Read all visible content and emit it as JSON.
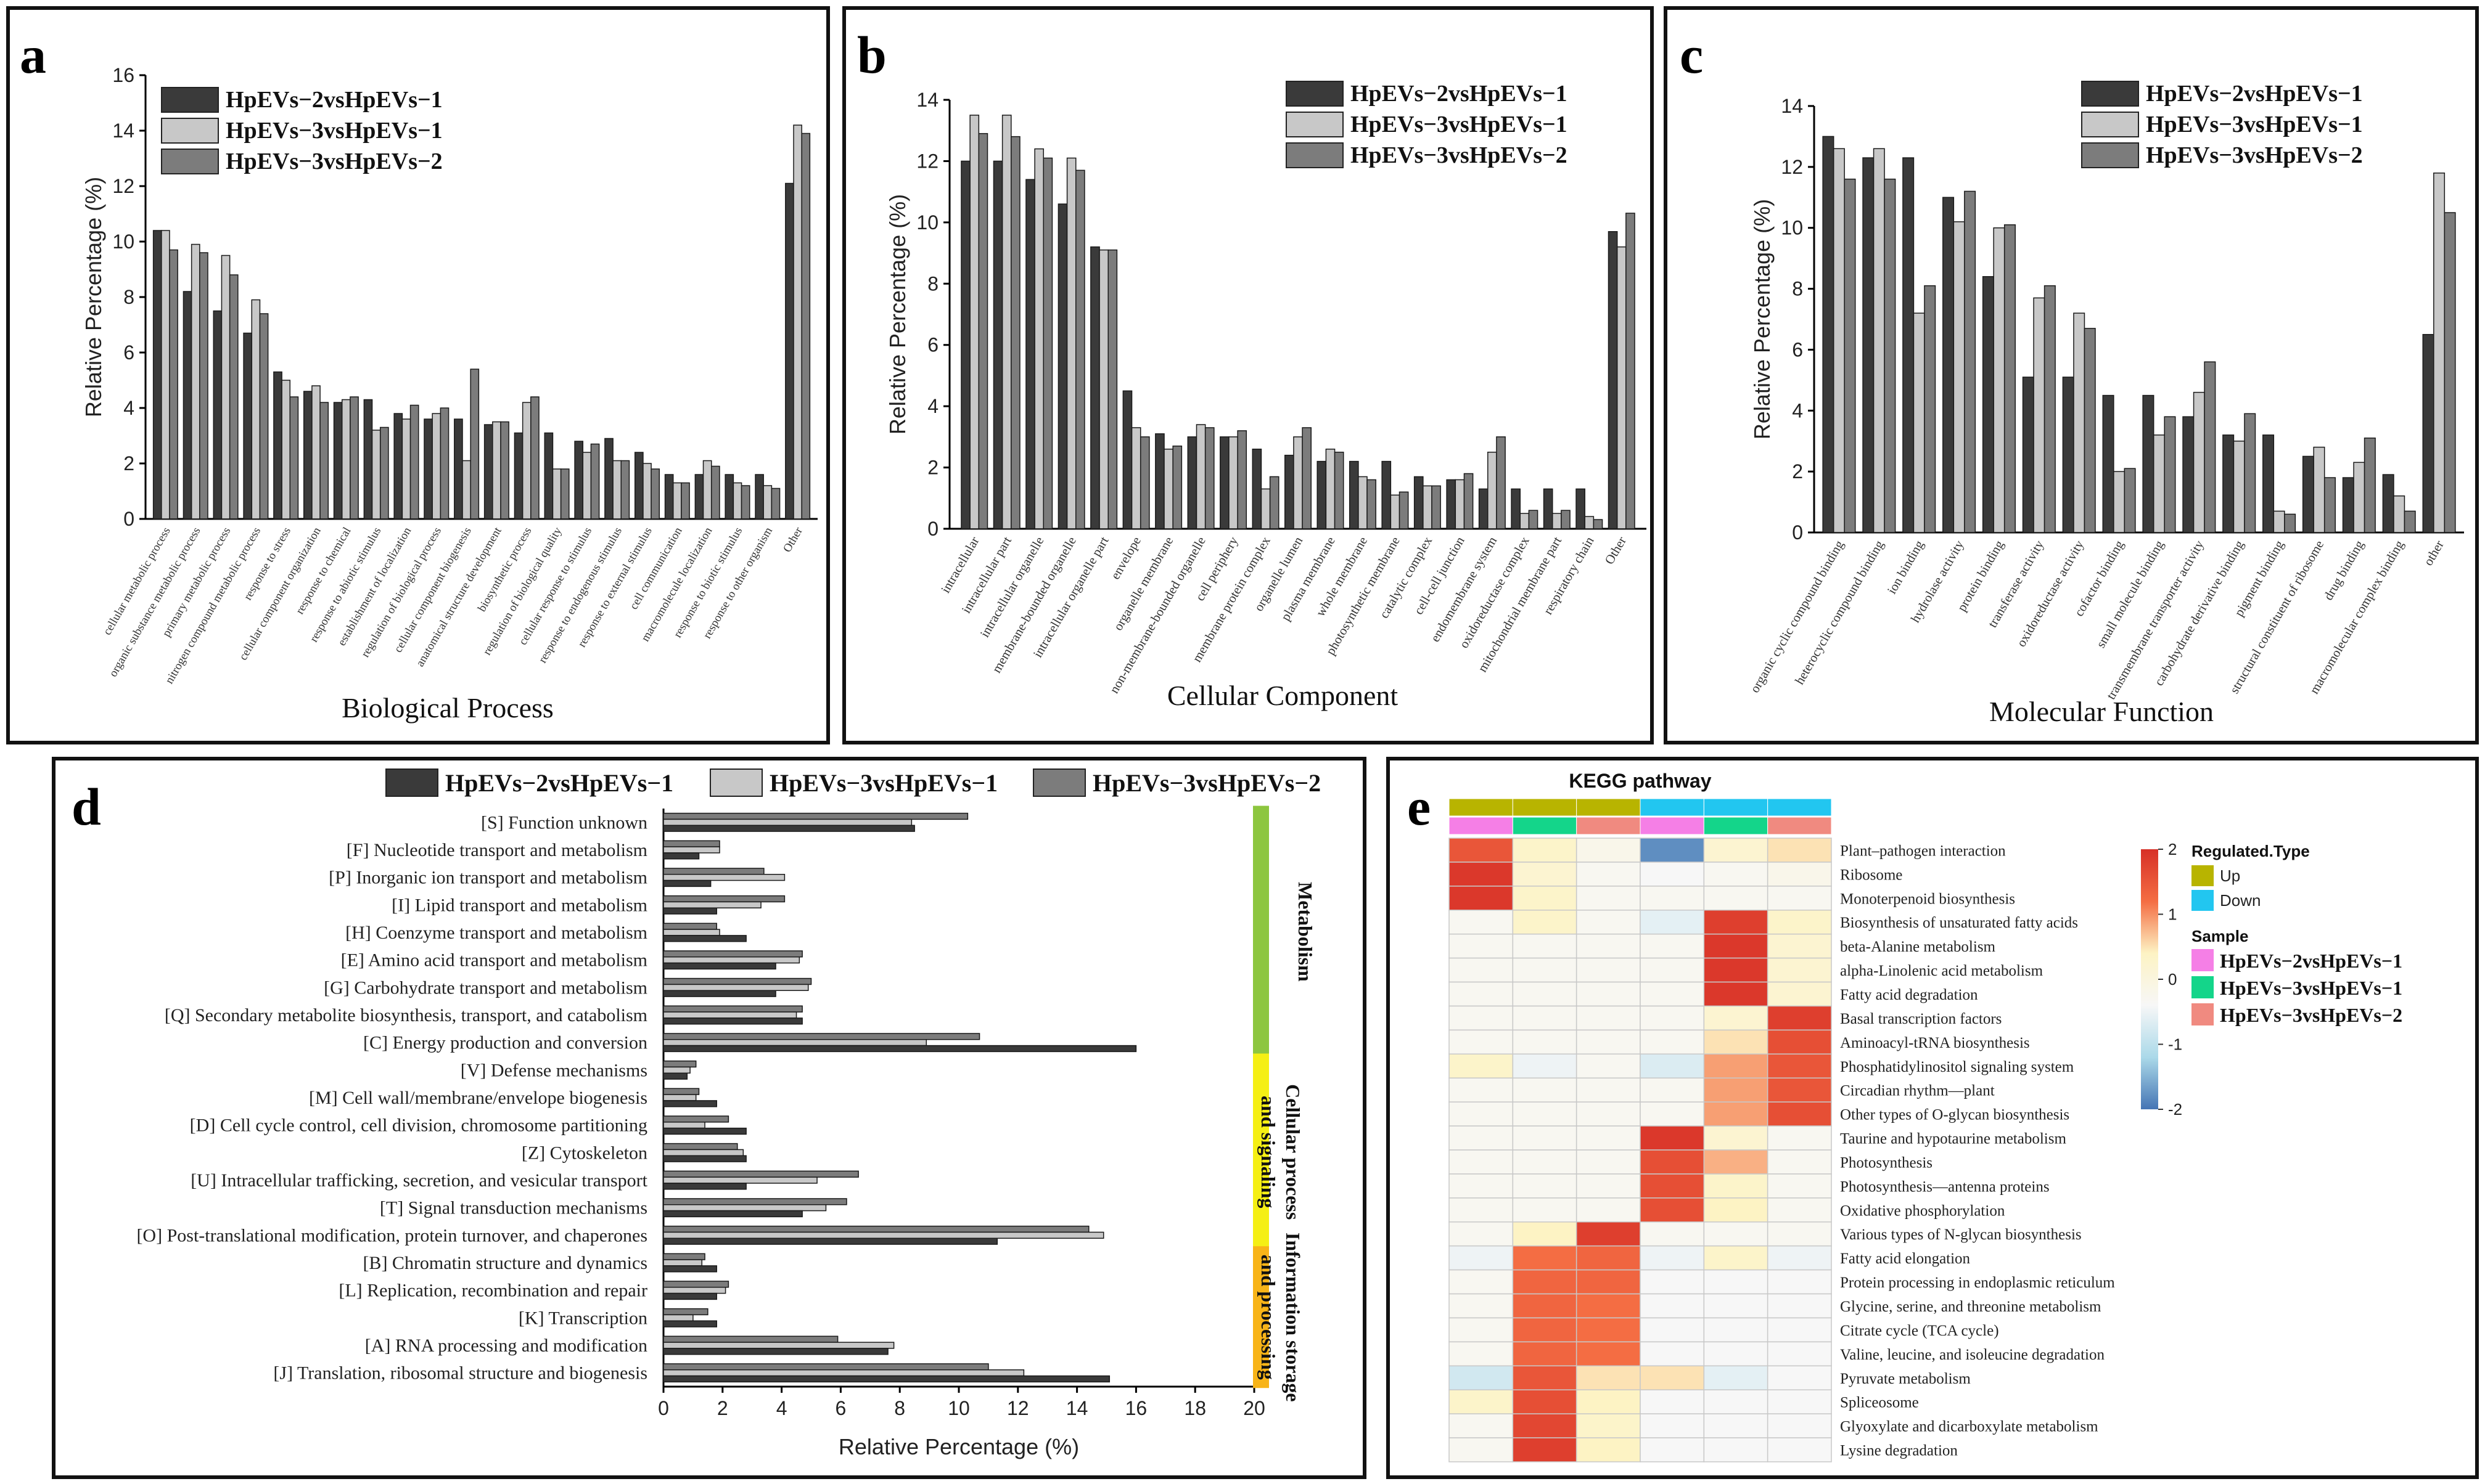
{
  "chart_data": [
    {
      "panel": "a",
      "type": "bar",
      "title": "",
      "xlabel": "Biological Process",
      "ylabel": "Relative Percentage (%)",
      "ylim": [
        0,
        16
      ],
      "yticks": [
        0,
        2,
        4,
        6,
        8,
        10,
        12,
        14,
        16
      ],
      "legend_position": "top-left",
      "categories": [
        "cellular metabolic process",
        "organic substance metabolic process",
        "primary metabolic process",
        "nitrogen compound metabolic process",
        "response to stress",
        "cellular component organization",
        "response to chemical",
        "response to abiotic stimulus",
        "establishment of localization",
        "regulation of biological process",
        "cellular component biogenesis",
        "anatomical structure development",
        "biosynthetic process",
        "regulation of biological quality",
        "cellular response to stimulus",
        "response to endogenous stimulus",
        "response to external stimulus",
        "cell communication",
        "macromolecule localization",
        "response to biotic stimulus",
        "response to other organism",
        "Other"
      ],
      "series": [
        {
          "name": "HpEVs−2vsHpEVs−1",
          "color": "#3a3a3a",
          "values": [
            10.4,
            8.2,
            7.5,
            6.7,
            5.3,
            4.6,
            4.2,
            4.3,
            3.8,
            3.6,
            3.6,
            3.4,
            3.1,
            3.1,
            2.8,
            2.9,
            2.4,
            1.6,
            1.6,
            1.6,
            1.6,
            12.1
          ]
        },
        {
          "name": "HpEVs−3vsHpEVs−1",
          "color": "#c8c8c8",
          "values": [
            10.4,
            9.9,
            9.5,
            7.9,
            5.0,
            4.8,
            4.3,
            3.2,
            3.6,
            3.8,
            2.1,
            3.5,
            4.2,
            1.8,
            2.4,
            2.1,
            2.0,
            1.3,
            2.1,
            1.3,
            1.2,
            14.2
          ]
        },
        {
          "name": "HpEVs−3vsHpEVs−2",
          "color": "#7c7c7c",
          "values": [
            9.7,
            9.6,
            8.8,
            7.4,
            4.4,
            4.2,
            4.4,
            3.3,
            4.1,
            4.0,
            5.4,
            3.5,
            4.4,
            1.8,
            2.7,
            2.1,
            1.8,
            1.3,
            1.9,
            1.2,
            1.1,
            13.9
          ]
        }
      ]
    },
    {
      "panel": "b",
      "type": "bar",
      "title": "",
      "xlabel": "Cellular Component",
      "ylabel": "Relative Percentage (%)",
      "ylim": [
        0,
        14
      ],
      "yticks": [
        0,
        2,
        4,
        6,
        8,
        10,
        12,
        14
      ],
      "legend_position": "top-right",
      "categories": [
        "intracellular",
        "intracellular part",
        "intracellular organelle",
        "membrane-bounded organelle",
        "intracellular organelle part",
        "envelope",
        "organelle membrane",
        "non-membrane-bounded organelle",
        "cell periphery",
        "membrane protein complex",
        "organelle lumen",
        "plasma membrane",
        "whole membrane",
        "photosynthetic membrane",
        "catalytic complex",
        "cell-cell junction",
        "endomembrane system",
        "oxidoreductase complex",
        "mitochondrial membrane part",
        "respiratory chain",
        "Other"
      ],
      "series": [
        {
          "name": "HpEVs−2vsHpEVs−1",
          "color": "#3a3a3a",
          "values": [
            12.0,
            12.0,
            11.4,
            10.6,
            9.2,
            4.5,
            3.1,
            3.0,
            3.0,
            2.6,
            2.4,
            2.2,
            2.2,
            2.2,
            1.7,
            1.6,
            1.3,
            1.3,
            1.3,
            1.3,
            9.7
          ]
        },
        {
          "name": "HpEVs−3vsHpEVs−1",
          "color": "#c8c8c8",
          "values": [
            13.5,
            13.5,
            12.4,
            12.1,
            9.1,
            3.3,
            2.6,
            3.4,
            3.0,
            1.3,
            3.0,
            2.6,
            1.7,
            1.1,
            1.4,
            1.6,
            2.5,
            0.5,
            0.5,
            0.4,
            9.2
          ]
        },
        {
          "name": "HpEVs−3vsHpEVs−2",
          "color": "#7c7c7c",
          "values": [
            12.9,
            12.8,
            12.1,
            11.7,
            9.1,
            3.0,
            2.7,
            3.3,
            3.2,
            1.7,
            3.3,
            2.5,
            1.6,
            1.2,
            1.4,
            1.8,
            3.0,
            0.6,
            0.6,
            0.3,
            10.3
          ]
        }
      ]
    },
    {
      "panel": "c",
      "type": "bar",
      "title": "",
      "xlabel": "Molecular Function",
      "ylabel": "Relative Percentage (%)",
      "ylim": [
        0,
        14
      ],
      "yticks": [
        0,
        2,
        4,
        6,
        8,
        10,
        12,
        14
      ],
      "legend_position": "top-right",
      "categories": [
        "organic cyclic compound binding",
        "heterocyclic compound binding",
        "ion binding",
        "hydrolase activity",
        "protein binding",
        "transferase activity",
        "oxidoreductase activity",
        "cofactor binding",
        "small molecule binding",
        "transmembrane transporter activity",
        "carbohydrate derivative binding",
        "pigment binding",
        "structural constituent of ribosome",
        "drug binding",
        "macromolecular complex binding",
        "other"
      ],
      "series": [
        {
          "name": "HpEVs−2vsHpEVs−1",
          "color": "#3a3a3a",
          "values": [
            13.0,
            12.3,
            12.3,
            11.0,
            8.4,
            5.1,
            5.1,
            4.5,
            4.5,
            3.8,
            3.2,
            3.2,
            2.5,
            1.8,
            1.9,
            6.5
          ]
        },
        {
          "name": "HpEVs−3vsHpEVs−1",
          "color": "#c8c8c8",
          "values": [
            12.6,
            12.6,
            7.2,
            10.2,
            10.0,
            7.7,
            7.2,
            2.0,
            3.2,
            4.6,
            3.0,
            0.7,
            2.8,
            2.3,
            1.2,
            11.8
          ]
        },
        {
          "name": "HpEVs−3vsHpEVs−2",
          "color": "#7c7c7c",
          "values": [
            11.6,
            11.6,
            8.1,
            11.2,
            10.1,
            8.1,
            6.7,
            2.1,
            3.8,
            5.6,
            3.9,
            0.6,
            1.8,
            3.1,
            0.7,
            10.5
          ]
        }
      ]
    },
    {
      "panel": "d",
      "type": "bar",
      "orientation": "horizontal",
      "title": "",
      "xlabel": "Relative Percentage (%)",
      "ylabel": "",
      "xlim": [
        0,
        20
      ],
      "xticks": [
        0,
        2,
        4,
        6,
        8,
        10,
        12,
        14,
        16,
        18,
        20
      ],
      "legend_position": "top",
      "categories": [
        "[S] Function unknown",
        "[F] Nucleotide transport and metabolism",
        "[P] Inorganic ion transport and metabolism",
        "[I] Lipid transport and metabolism",
        "[H] Coenzyme transport and metabolism",
        "[E] Amino acid transport and metabolism",
        "[G] Carbohydrate transport and metabolism",
        "[Q] Secondary metabolite biosynthesis, transport, and catabolism",
        "[C] Energy production and conversion",
        "[V] Defense mechanisms",
        "[M] Cell wall/membrane/envelope biogenesis",
        "[D] Cell cycle control, cell division, chromosome partitioning",
        "[Z] Cytoskeleton",
        "[U] Intracellular trafficking, secretion, and vesicular transport",
        "[T] Signal transduction mechanisms",
        "[O] Post-translational modification, protein turnover, and chaperones",
        "[B] Chromatin structure and dynamics",
        "[L] Replication, recombination and repair",
        "[K] Transcription",
        "[A] RNA processing and modification",
        "[J] Translation, ribosomal structure and biogenesis"
      ],
      "series": [
        {
          "name": "HpEVs−2vsHpEVs−1",
          "color": "#3a3a3a",
          "values": [
            8.5,
            1.2,
            1.6,
            1.8,
            2.8,
            3.8,
            3.8,
            4.7,
            16.0,
            0.8,
            1.8,
            2.8,
            2.8,
            2.8,
            4.7,
            11.3,
            1.8,
            1.8,
            1.8,
            7.6,
            15.1
          ]
        },
        {
          "name": "HpEVs−3vsHpEVs−1",
          "color": "#c8c8c8",
          "values": [
            8.4,
            1.9,
            4.1,
            3.3,
            1.9,
            4.6,
            4.9,
            4.5,
            8.9,
            0.9,
            1.1,
            1.4,
            2.7,
            5.2,
            5.5,
            14.9,
            1.3,
            2.1,
            1.0,
            7.8,
            12.2
          ]
        },
        {
          "name": "HpEVs−3vsHpEVs−2",
          "color": "#7c7c7c",
          "values": [
            10.3,
            1.9,
            3.4,
            4.1,
            1.8,
            4.7,
            5.0,
            4.7,
            10.7,
            1.1,
            1.2,
            2.2,
            2.5,
            6.6,
            6.2,
            14.4,
            1.4,
            2.2,
            1.5,
            5.9,
            11.0
          ]
        }
      ],
      "groups": [
        {
          "label": "Metabolism",
          "color": "#8dc63f",
          "from": 0,
          "to": 8
        },
        {
          "label": "Cellular process and signaling",
          "color": "#f5ef14",
          "from": 9,
          "to": 15
        },
        {
          "label": "Information storage and processing",
          "color": "#f8b418",
          "from": 16,
          "to": 20
        }
      ]
    },
    {
      "panel": "e",
      "type": "heatmap",
      "title": "KEGG pathway",
      "color_scale": {
        "min": -2,
        "max": 2,
        "ticks": [
          "2",
          "1",
          "0",
          "-1",
          "-2"
        ],
        "colors": [
          "#4575b4",
          "#abd9e9",
          "#f7f7f7",
          "#fdf3c4",
          "#f46d43",
          "#d73027"
        ]
      },
      "columns": [
        {
          "sample": "HpEVs−2vsHpEVs−1",
          "type": "Up"
        },
        {
          "sample": "HpEVs−3vsHpEVs−1",
          "type": "Up"
        },
        {
          "sample": "HpEVs−3vsHpEVs−2",
          "type": "Up"
        },
        {
          "sample": "HpEVs−2vsHpEVs−1",
          "type": "Down"
        },
        {
          "sample": "HpEVs−3vsHpEVs−1",
          "type": "Down"
        },
        {
          "sample": "HpEVs−3vsHpEVs−2",
          "type": "Down"
        }
      ],
      "rows": [
        "Plant–pathogen interaction",
        "Ribosome",
        "Monoterpenoid biosynthesis",
        "Biosynthesis of unsaturated fatty acids",
        "beta-Alanine metabolism",
        "alpha-Linolenic acid metabolism",
        "Fatty acid degradation",
        "Basal transcription factors",
        "Aminoacyl-tRNA biosynthesis",
        "Phosphatidylinositol signaling system",
        "Circadian rhythm—plant",
        "Other types of O-glycan biosynthesis",
        "Taurine and hypotaurine metabolism",
        "Photosynthesis",
        "Photosynthesis—antenna proteins",
        "Oxidative phosphorylation",
        "Various types of N-glycan biosynthesis",
        "Fatty acid elongation",
        "Protein processing in endoplasmic reticulum",
        "Glycine, serine, and threonine metabolism",
        "Citrate cycle (TCA cycle)",
        "Valine, leucine, and isoleucine degradation",
        "Pyruvate metabolism",
        "Spliceosome",
        "Glyoxylate and dicarboxylate metabolism",
        "Lysine degradation"
      ],
      "values": [
        [
          1.5,
          0.3,
          -0.2,
          -1.8,
          0.2,
          0.5
        ],
        [
          1.9,
          0.2,
          -0.3,
          -0.4,
          -0.3,
          -0.2
        ],
        [
          1.9,
          0.3,
          -0.3,
          -0.3,
          -0.3,
          -0.3
        ],
        [
          -0.3,
          0.3,
          -0.3,
          -0.6,
          1.8,
          0.3
        ],
        [
          -0.3,
          -0.3,
          -0.3,
          -0.3,
          1.9,
          0.2
        ],
        [
          -0.3,
          -0.3,
          -0.3,
          -0.3,
          1.9,
          0.2
        ],
        [
          -0.3,
          -0.3,
          -0.3,
          -0.3,
          1.9,
          0.2
        ],
        [
          -0.3,
          -0.3,
          -0.3,
          -0.3,
          0.2,
          1.8
        ],
        [
          -0.3,
          -0.3,
          -0.3,
          -0.3,
          0.5,
          1.6
        ],
        [
          0.3,
          -0.5,
          -0.3,
          -0.7,
          0.9,
          1.5
        ],
        [
          -0.3,
          -0.3,
          -0.3,
          -0.3,
          0.9,
          1.5
        ],
        [
          -0.3,
          -0.3,
          -0.3,
          -0.3,
          0.9,
          1.6
        ],
        [
          -0.3,
          -0.3,
          -0.3,
          1.9,
          0.2,
          -0.3
        ],
        [
          -0.3,
          -0.3,
          -0.3,
          1.6,
          0.8,
          -0.3
        ],
        [
          -0.3,
          -0.3,
          -0.3,
          1.6,
          0.3,
          -0.3
        ],
        [
          -0.3,
          -0.3,
          -0.3,
          1.6,
          0.4,
          -0.3
        ],
        [
          -0.3,
          0.4,
          1.8,
          -0.3,
          -0.3,
          -0.3
        ],
        [
          -0.5,
          1.2,
          1.3,
          -0.5,
          0.3,
          -0.5
        ],
        [
          -0.3,
          1.3,
          1.3,
          -0.4,
          -0.4,
          -0.4
        ],
        [
          -0.3,
          1.3,
          1.2,
          -0.4,
          -0.4,
          -0.4
        ],
        [
          -0.3,
          1.3,
          1.2,
          -0.4,
          -0.4,
          -0.4
        ],
        [
          -0.3,
          1.3,
          1.2,
          -0.4,
          -0.4,
          -0.4
        ],
        [
          -0.8,
          1.5,
          0.5,
          0.5,
          -0.6,
          -0.4
        ],
        [
          0.3,
          1.6,
          0.4,
          -0.4,
          -0.4,
          -0.4
        ],
        [
          -0.3,
          1.7,
          0.3,
          -0.4,
          -0.4,
          -0.4
        ],
        [
          -0.3,
          1.8,
          0.4,
          -0.4,
          -0.4,
          -0.4
        ]
      ],
      "legend": {
        "scale_title": "",
        "regulated_title": "Regulated.Type",
        "regulated": [
          {
            "label": "Up",
            "color": "#b8b400"
          },
          {
            "label": "Down",
            "color": "#22c6f0"
          }
        ],
        "sample_title": "Sample",
        "samples": [
          {
            "label": "HpEVs−2vsHpEVs−1",
            "color": "#f57fe6"
          },
          {
            "label": "HpEVs−3vsHpEVs−1",
            "color": "#14d58a"
          },
          {
            "label": "HpEVs−3vsHpEVs−2",
            "color": "#f08a80"
          }
        ]
      }
    }
  ],
  "panel_letters": [
    "a",
    "b",
    "c",
    "d",
    "e"
  ]
}
